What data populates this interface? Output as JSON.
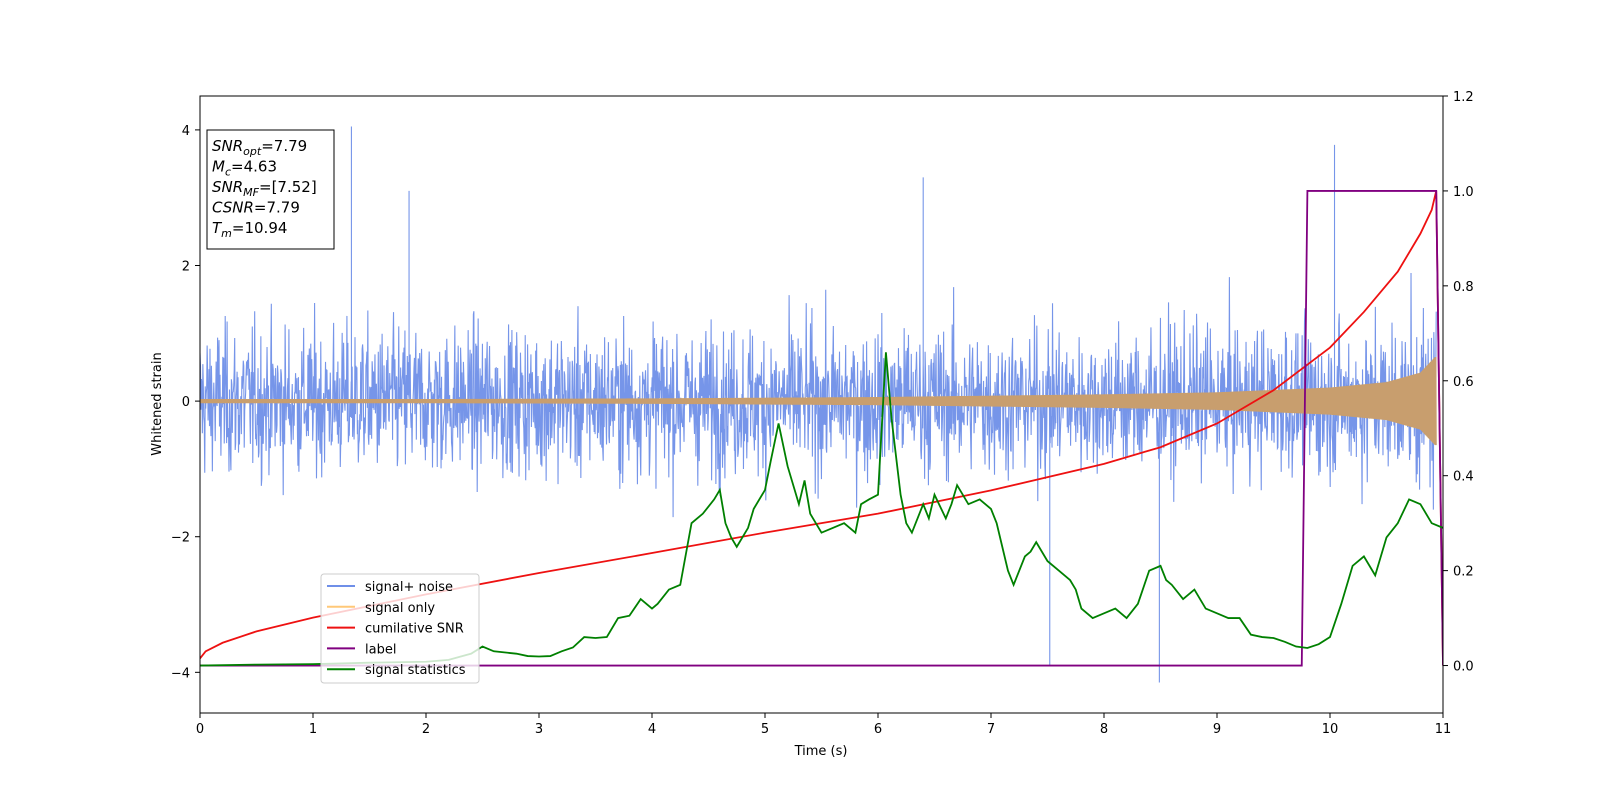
{
  "chart_data": {
    "type": "line",
    "xlabel": "Time (s)",
    "ylabel": "Whitened strain",
    "xlim": [
      0,
      11
    ],
    "ylim_left": [
      -4.6,
      4.5
    ],
    "ylim_right": [
      -0.1,
      1.2
    ],
    "x_ticks": [
      "0",
      "1",
      "2",
      "3",
      "4",
      "5",
      "6",
      "7",
      "8",
      "9",
      "10",
      "11"
    ],
    "y_ticks_left": [
      "4",
      "2",
      "0",
      "−2",
      "−4"
    ],
    "y_ticks_right": [
      "1.2",
      "1.0",
      "0.8",
      "0.6",
      "0.4",
      "0.2",
      "0.0"
    ],
    "grid": false,
    "legend_position": "lower-left",
    "legend": [
      {
        "label": "signal+ noise",
        "color": "#6f8fe8"
      },
      {
        "label": "signal only",
        "color": "#ffc878"
      },
      {
        "label": "cumilative SNR",
        "color": "#ee1111"
      },
      {
        "label": "label",
        "color": "#800080"
      },
      {
        "label": "signal statistics",
        "color": "#008000"
      }
    ],
    "annotation": [
      {
        "sym": "SNR",
        "sub": "opt",
        "value": "=7.79"
      },
      {
        "sym": "M",
        "sub": "c",
        "value": "=4.63"
      },
      {
        "sym": "SNR",
        "sub": "MF",
        "value": "=[7.52]"
      },
      {
        "sym": "CSNR",
        "sub": "",
        "value": "=7.79"
      },
      {
        "sym": "T",
        "sub": "m",
        "value": "=10.94"
      }
    ],
    "series": [
      {
        "name": "signal+ noise",
        "axis": "left",
        "color": "#6f8fe8",
        "description": "whitened noise, roughly |y| <= 2.5, spikes to 4.05 at t=1.34 and 3.78 at t=10.04, dips to -3.9 at t=7.52 and -4.15 at t=8.49",
        "t_end": 10.94,
        "spikes": [
          [
            1.34,
            4.05
          ],
          [
            10.04,
            3.78
          ],
          [
            7.52,
            -3.9
          ],
          [
            8.49,
            -4.15
          ],
          [
            6.4,
            3.3
          ],
          [
            1.85,
            3.1
          ]
        ]
      },
      {
        "name": "signal only",
        "axis": "left",
        "color": "#ffc878",
        "envelope": [
          [
            0,
            0.03
          ],
          [
            2,
            0.03
          ],
          [
            4,
            0.04
          ],
          [
            6,
            0.06
          ],
          [
            8,
            0.1
          ],
          [
            9,
            0.13
          ],
          [
            10,
            0.2
          ],
          [
            10.5,
            0.28
          ],
          [
            10.8,
            0.42
          ],
          [
            10.93,
            0.65
          ]
        ],
        "t_end": 10.94
      },
      {
        "name": "cumilative SNR",
        "axis": "right",
        "x": [
          0.0,
          0.05,
          0.2,
          0.5,
          1.0,
          2.0,
          3.0,
          4.0,
          5.0,
          6.0,
          7.0,
          8.0,
          8.5,
          9.0,
          9.5,
          10.0,
          10.3,
          10.6,
          10.8,
          10.9,
          10.94,
          11.0
        ],
        "y": [
          0.015,
          0.03,
          0.048,
          0.072,
          0.101,
          0.15,
          0.195,
          0.237,
          0.28,
          0.32,
          0.369,
          0.425,
          0.46,
          0.51,
          0.58,
          0.67,
          0.745,
          0.83,
          0.91,
          0.96,
          1.0,
          0.0
        ]
      },
      {
        "name": "label",
        "axis": "right",
        "x": [
          0.0,
          9.75,
          9.8,
          10.94,
          11.0
        ],
        "y": [
          0.0,
          0.0,
          1.0,
          1.0,
          0.0
        ]
      },
      {
        "name": "signal statistics",
        "axis": "right",
        "x": [
          0.0,
          0.5,
          1.0,
          1.5,
          2.0,
          2.2,
          2.4,
          2.5,
          2.6,
          2.8,
          2.9,
          3.0,
          3.1,
          3.2,
          3.3,
          3.4,
          3.5,
          3.6,
          3.7,
          3.8,
          3.9,
          4.0,
          4.05,
          4.15,
          4.25,
          4.35,
          4.45,
          4.55,
          4.6,
          4.65,
          4.7,
          4.75,
          4.85,
          4.9,
          5.0,
          5.05,
          5.12,
          5.2,
          5.3,
          5.35,
          5.4,
          5.45,
          5.5,
          5.6,
          5.7,
          5.8,
          5.85,
          5.92,
          6.0,
          6.07,
          6.12,
          6.2,
          6.25,
          6.3,
          6.4,
          6.45,
          6.5,
          6.6,
          6.65,
          6.7,
          6.8,
          6.9,
          7.0,
          7.05,
          7.1,
          7.15,
          7.2,
          7.3,
          7.35,
          7.4,
          7.5,
          7.6,
          7.7,
          7.75,
          7.8,
          7.9,
          8.0,
          8.1,
          8.2,
          8.3,
          8.4,
          8.5,
          8.55,
          8.6,
          8.7,
          8.8,
          8.9,
          9.0,
          9.1,
          9.2,
          9.3,
          9.4,
          9.5,
          9.6,
          9.7,
          9.8,
          9.9,
          10.0,
          10.1,
          10.2,
          10.3,
          10.4,
          10.5,
          10.6,
          10.7,
          10.8,
          10.9,
          11.0
        ],
        "y": [
          0.0,
          0.002,
          0.003,
          0.006,
          0.008,
          0.012,
          0.025,
          0.04,
          0.03,
          0.025,
          0.02,
          0.019,
          0.02,
          0.03,
          0.038,
          0.06,
          0.058,
          0.06,
          0.1,
          0.105,
          0.14,
          0.12,
          0.13,
          0.16,
          0.17,
          0.3,
          0.32,
          0.35,
          0.37,
          0.3,
          0.27,
          0.25,
          0.29,
          0.33,
          0.37,
          0.43,
          0.51,
          0.42,
          0.34,
          0.39,
          0.32,
          0.3,
          0.28,
          0.29,
          0.3,
          0.28,
          0.34,
          0.35,
          0.36,
          0.66,
          0.52,
          0.36,
          0.3,
          0.28,
          0.34,
          0.31,
          0.36,
          0.31,
          0.34,
          0.38,
          0.34,
          0.35,
          0.33,
          0.3,
          0.25,
          0.2,
          0.17,
          0.23,
          0.24,
          0.26,
          0.22,
          0.2,
          0.18,
          0.16,
          0.12,
          0.1,
          0.11,
          0.12,
          0.1,
          0.13,
          0.2,
          0.21,
          0.18,
          0.17,
          0.14,
          0.16,
          0.12,
          0.11,
          0.1,
          0.1,
          0.065,
          0.06,
          0.058,
          0.05,
          0.04,
          0.037,
          0.045,
          0.06,
          0.13,
          0.21,
          0.23,
          0.19,
          0.27,
          0.3,
          0.35,
          0.34,
          0.3,
          0.29
        ]
      }
    ]
  }
}
